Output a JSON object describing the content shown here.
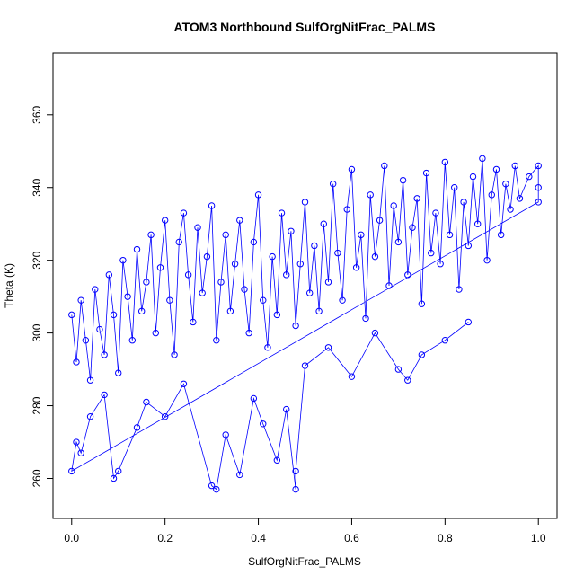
{
  "chart_data": {
    "type": "scatter",
    "title": "ATOM3 Northbound SulfOrgNitFrac_PALMS",
    "xlabel": "SulfOrgNitFrac_PALMS",
    "ylabel": "Theta (K)",
    "xlim": [
      -0.04,
      1.04
    ],
    "ylim": [
      249,
      377
    ],
    "x_ticks": [
      "0.0",
      "0.2",
      "0.4",
      "0.6",
      "0.8",
      "1.0"
    ],
    "y_ticks": [
      "260",
      "280",
      "300",
      "320",
      "340",
      "360"
    ],
    "grid": false,
    "legend": "none",
    "connected": true,
    "marker": "open-circle",
    "color": "#0000ff",
    "points": [
      [
        0.0,
        305
      ],
      [
        0.01,
        292
      ],
      [
        0.02,
        309
      ],
      [
        0.03,
        298
      ],
      [
        0.04,
        287
      ],
      [
        0.05,
        312
      ],
      [
        0.06,
        301
      ],
      [
        0.07,
        294
      ],
      [
        0.08,
        316
      ],
      [
        0.09,
        305
      ],
      [
        0.1,
        289
      ],
      [
        0.11,
        320
      ],
      [
        0.12,
        310
      ],
      [
        0.13,
        298
      ],
      [
        0.14,
        323
      ],
      [
        0.15,
        306
      ],
      [
        0.16,
        314
      ],
      [
        0.17,
        327
      ],
      [
        0.18,
        300
      ],
      [
        0.19,
        318
      ],
      [
        0.2,
        331
      ],
      [
        0.21,
        309
      ],
      [
        0.22,
        294
      ],
      [
        0.23,
        325
      ],
      [
        0.24,
        333
      ],
      [
        0.25,
        316
      ],
      [
        0.26,
        303
      ],
      [
        0.27,
        329
      ],
      [
        0.28,
        311
      ],
      [
        0.29,
        321
      ],
      [
        0.3,
        335
      ],
      [
        0.31,
        298
      ],
      [
        0.32,
        314
      ],
      [
        0.33,
        327
      ],
      [
        0.34,
        306
      ],
      [
        0.35,
        319
      ],
      [
        0.36,
        331
      ],
      [
        0.37,
        312
      ],
      [
        0.38,
        300
      ],
      [
        0.39,
        325
      ],
      [
        0.4,
        338
      ],
      [
        0.41,
        309
      ],
      [
        0.42,
        296
      ],
      [
        0.43,
        321
      ],
      [
        0.44,
        305
      ],
      [
        0.45,
        333
      ],
      [
        0.46,
        316
      ],
      [
        0.47,
        328
      ],
      [
        0.48,
        302
      ],
      [
        0.49,
        319
      ],
      [
        0.5,
        336
      ],
      [
        0.51,
        311
      ],
      [
        0.52,
        324
      ],
      [
        0.53,
        306
      ],
      [
        0.54,
        330
      ],
      [
        0.55,
        314
      ],
      [
        0.56,
        341
      ],
      [
        0.57,
        322
      ],
      [
        0.58,
        309
      ],
      [
        0.59,
        334
      ],
      [
        0.6,
        345
      ],
      [
        0.61,
        318
      ],
      [
        0.62,
        327
      ],
      [
        0.63,
        304
      ],
      [
        0.64,
        338
      ],
      [
        0.65,
        321
      ],
      [
        0.66,
        331
      ],
      [
        0.67,
        346
      ],
      [
        0.68,
        313
      ],
      [
        0.69,
        335
      ],
      [
        0.7,
        325
      ],
      [
        0.71,
        342
      ],
      [
        0.72,
        316
      ],
      [
        0.73,
        329
      ],
      [
        0.74,
        337
      ],
      [
        0.75,
        308
      ],
      [
        0.76,
        344
      ],
      [
        0.77,
        322
      ],
      [
        0.78,
        333
      ],
      [
        0.79,
        319
      ],
      [
        0.8,
        347
      ],
      [
        0.81,
        327
      ],
      [
        0.82,
        340
      ],
      [
        0.83,
        312
      ],
      [
        0.84,
        336
      ],
      [
        0.85,
        324
      ],
      [
        0.86,
        343
      ],
      [
        0.87,
        330
      ],
      [
        0.88,
        348
      ],
      [
        0.89,
        320
      ],
      [
        0.9,
        338
      ],
      [
        0.91,
        345
      ],
      [
        0.92,
        327
      ],
      [
        0.93,
        341
      ],
      [
        0.94,
        334
      ],
      [
        0.95,
        346
      ],
      [
        0.96,
        337
      ],
      [
        0.98,
        343
      ],
      [
        1.0,
        346
      ],
      [
        1.0,
        340
      ],
      [
        1.0,
        336
      ],
      [
        0.0,
        262
      ],
      [
        0.01,
        270
      ],
      [
        0.02,
        267
      ],
      [
        0.04,
        277
      ],
      [
        0.07,
        283
      ],
      [
        0.09,
        260
      ],
      [
        0.1,
        262
      ],
      [
        0.14,
        274
      ],
      [
        0.16,
        281
      ],
      [
        0.2,
        277
      ],
      [
        0.24,
        286
      ],
      [
        0.3,
        258
      ],
      [
        0.31,
        257
      ],
      [
        0.33,
        272
      ],
      [
        0.36,
        261
      ],
      [
        0.39,
        282
      ],
      [
        0.41,
        275
      ],
      [
        0.44,
        265
      ],
      [
        0.46,
        279
      ],
      [
        0.48,
        257
      ],
      [
        0.48,
        262
      ],
      [
        0.5,
        291
      ],
      [
        0.55,
        296
      ],
      [
        0.6,
        288
      ],
      [
        0.65,
        300
      ],
      [
        0.7,
        290
      ],
      [
        0.72,
        287
      ],
      [
        0.75,
        294
      ],
      [
        0.8,
        298
      ],
      [
        0.85,
        303
      ]
    ]
  }
}
